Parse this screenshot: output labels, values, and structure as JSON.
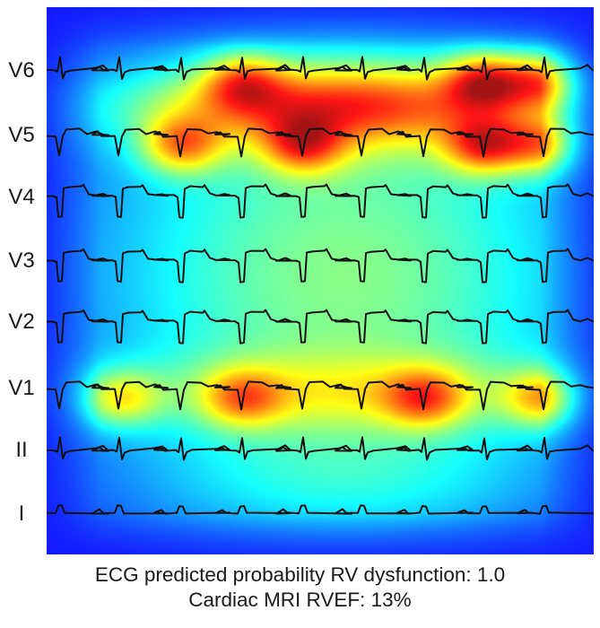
{
  "figure": {
    "type": "ecg-saliency-heatmap",
    "colormap": "jet",
    "leads": [
      {
        "name": "V6",
        "morphology": "upright-qrs"
      },
      {
        "name": "V5",
        "morphology": "deep-q"
      },
      {
        "name": "V4",
        "morphology": "deep-qs-elevated-st"
      },
      {
        "name": "V3",
        "morphology": "deep-qs-elevated-st"
      },
      {
        "name": "V2",
        "morphology": "deep-qs-elevated-st"
      },
      {
        "name": "V1",
        "morphology": "deep-q"
      },
      {
        "name": "II",
        "morphology": "upright-qrs"
      },
      {
        "name": "I",
        "morphology": "small-upright"
      }
    ],
    "beat_count": 9,
    "hotspots": [
      {
        "lead": "V6",
        "beat": 8,
        "intensity": 1.0
      },
      {
        "lead": "V5",
        "beat": 8,
        "intensity": 1.0
      },
      {
        "lead": "V6",
        "beat": 9,
        "intensity": 0.9
      },
      {
        "lead": "V5",
        "beat": 9,
        "intensity": 0.85
      },
      {
        "lead": "V5",
        "beat": 3,
        "intensity": 0.85
      },
      {
        "lead": "V5",
        "beat": 5,
        "intensity": 0.8
      },
      {
        "lead": "V6",
        "beat": 4,
        "intensity": 0.7
      },
      {
        "lead": "V1",
        "beat": 2,
        "intensity": 0.7
      },
      {
        "lead": "V1",
        "beat": 4,
        "intensity": 0.65
      },
      {
        "lead": "V1",
        "beat": 7,
        "intensity": 0.7
      },
      {
        "lead": "V1",
        "beat": 9,
        "intensity": 0.8
      }
    ]
  },
  "caption": {
    "line1": "ECG predicted probability RV dysfunction: 1.0",
    "line2": "Cardiac MRI RVEF: 13%"
  }
}
